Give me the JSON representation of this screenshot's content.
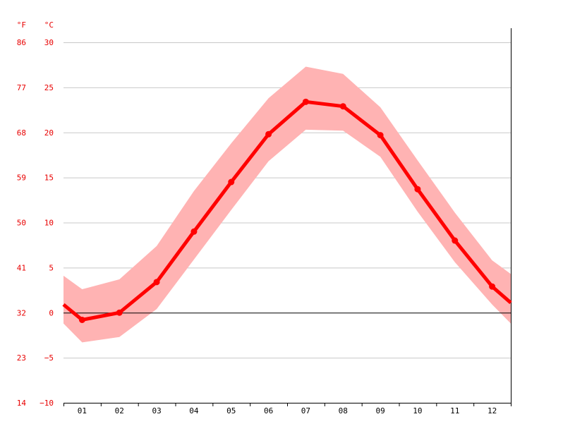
{
  "chart_data": {
    "type": "line",
    "title": "",
    "xlabel": "",
    "ylabel": "",
    "y_units": {
      "left_outer": "°F",
      "left_inner": "°C"
    },
    "categories": [
      "01",
      "02",
      "03",
      "04",
      "05",
      "06",
      "07",
      "08",
      "09",
      "10",
      "11",
      "12"
    ],
    "y_ticks_c": [
      30,
      25,
      20,
      15,
      10,
      5,
      0,
      -5,
      -10
    ],
    "y_tick_labels_c": [
      "30",
      "25",
      "20",
      "15",
      "10",
      "5",
      "0",
      "−5",
      "−10"
    ],
    "y_tick_labels_f": [
      "86",
      "77",
      "68",
      "59",
      "50",
      "41",
      "32",
      "23",
      "14"
    ],
    "ylim": [
      -10,
      30
    ],
    "grid": true,
    "series": [
      {
        "kind": "mean",
        "values": [
          -0.8,
          0.0,
          3.4,
          9.0,
          14.5,
          19.8,
          23.4,
          22.9,
          19.7,
          13.7,
          8.0,
          2.9
        ],
        "line_start": 0.9,
        "line_end": 1.1,
        "color": "#ff0000"
      },
      {
        "kind": "range",
        "upper": [
          2.6,
          3.7,
          7.4,
          13.5,
          18.8,
          23.8,
          27.3,
          26.5,
          22.8,
          16.9,
          11.1,
          5.8
        ],
        "lower": [
          -3.3,
          -2.7,
          0.4,
          5.9,
          11.4,
          16.8,
          20.3,
          20.2,
          17.3,
          11.2,
          5.6,
          0.9
        ],
        "upper_start": 4.1,
        "upper_end": 4.3,
        "lower_start": -1.2,
        "lower_end": -1.2,
        "color": "#ffb3b3"
      }
    ],
    "colors": {
      "axis_labels": "#e80000",
      "grid": "#c8c8c8",
      "zero_line": "#000000",
      "x_labels": "#000000"
    }
  }
}
